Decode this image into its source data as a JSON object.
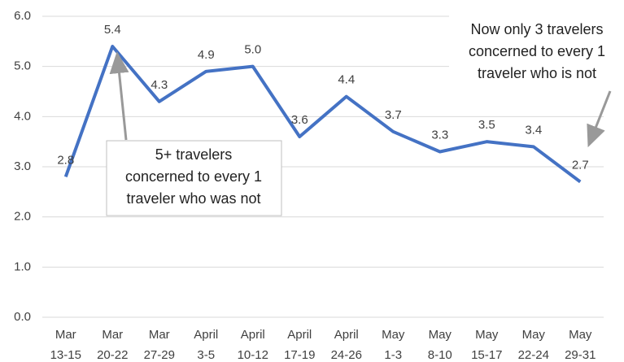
{
  "chart_data": {
    "type": "line",
    "categories": [
      [
        "Mar",
        "13-15"
      ],
      [
        "Mar",
        "20-22"
      ],
      [
        "Mar",
        "27-29"
      ],
      [
        "April",
        "3-5"
      ],
      [
        "April",
        "10-12"
      ],
      [
        "April",
        "17-19"
      ],
      [
        "April",
        "24-26"
      ],
      [
        "May",
        "1-3"
      ],
      [
        "May",
        "8-10"
      ],
      [
        "May",
        "15-17"
      ],
      [
        "May",
        "22-24"
      ],
      [
        "May",
        "29-31"
      ]
    ],
    "series": [
      {
        "color": "#4472c4",
        "values": [
          2.8,
          5.4,
          4.3,
          4.9,
          5.0,
          3.6,
          4.4,
          3.7,
          3.3,
          3.5,
          3.4,
          2.7
        ],
        "value_labels": [
          "2.8",
          "5.4",
          "4.3",
          "4.9",
          "5.0",
          "3.6",
          "4.4",
          "3.7",
          "3.3",
          "3.5",
          "3.4",
          "2.7"
        ]
      }
    ],
    "ylim": [
      0,
      6
    ],
    "yticks": [
      {
        "value": 0,
        "label": "0.0"
      },
      {
        "value": 1,
        "label": "1.0"
      },
      {
        "value": 2,
        "label": "2.0"
      },
      {
        "value": 3,
        "label": "3.0"
      },
      {
        "value": 4,
        "label": "4.0"
      },
      {
        "value": 5,
        "label": "5.0"
      },
      {
        "value": 6,
        "label": "6.0"
      }
    ],
    "grid": true,
    "annotations": [
      {
        "lines": [
          "5+ travelers",
          "concerned to every 1",
          "traveler who was not"
        ]
      },
      {
        "lines": [
          "Now only 3 travelers",
          "concerned to every 1",
          "traveler who is not"
        ]
      }
    ]
  }
}
